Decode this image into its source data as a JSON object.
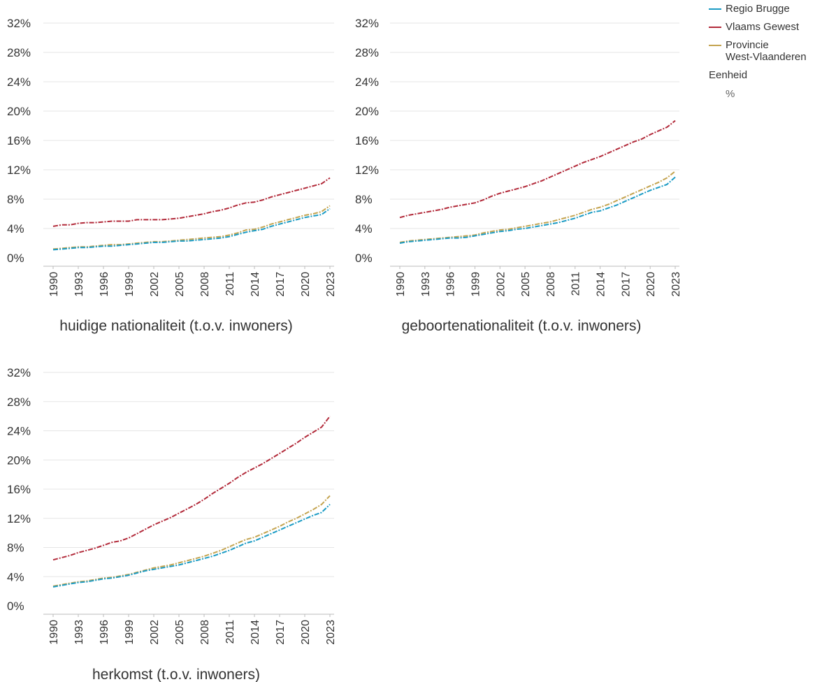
{
  "legend": {
    "items": [
      {
        "label": "Regio Brugge",
        "color": "#1a9bc4"
      },
      {
        "label": "Vlaams Gewest",
        "color": "#b22a3a"
      },
      {
        "label": "Provincie\nWest-Vlaanderen",
        "color": "#c4a450"
      }
    ],
    "unit_title": "Eenheid",
    "unit_value": "%"
  },
  "chart_data": [
    {
      "type": "line",
      "title": "huidige nationaliteit (t.o.v. inwoners)",
      "ylim": [
        0,
        32
      ],
      "yticks": [
        "0%",
        "4%",
        "8%",
        "12%",
        "16%",
        "20%",
        "24%",
        "28%",
        "32%"
      ],
      "xticks": [
        "1990",
        "1993",
        "1996",
        "1999",
        "2002",
        "2005",
        "2008",
        "2011",
        "2014",
        "2017",
        "2020",
        "2023"
      ],
      "x": [
        1990,
        1991,
        1992,
        1993,
        1994,
        1995,
        1996,
        1997,
        1998,
        1999,
        2000,
        2001,
        2002,
        2003,
        2004,
        2005,
        2006,
        2007,
        2008,
        2009,
        2010,
        2011,
        2012,
        2013,
        2014,
        2015,
        2016,
        2017,
        2018,
        2019,
        2020,
        2021,
        2022,
        2023
      ],
      "series": [
        {
          "name": "Vlaams Gewest",
          "color": "#b22a3a",
          "values": [
            4.3,
            4.5,
            4.5,
            4.7,
            4.8,
            4.8,
            4.9,
            5.0,
            5.0,
            5.0,
            5.2,
            5.2,
            5.2,
            5.2,
            5.3,
            5.4,
            5.6,
            5.8,
            6.0,
            6.3,
            6.5,
            6.8,
            7.2,
            7.5,
            7.6,
            7.9,
            8.3,
            8.6,
            8.9,
            9.2,
            9.5,
            9.8,
            10.1,
            10.9
          ]
        },
        {
          "name": "Provincie West-Vlaanderen",
          "color": "#c4a450",
          "values": [
            1.2,
            1.3,
            1.4,
            1.5,
            1.5,
            1.6,
            1.7,
            1.8,
            1.8,
            1.9,
            2.0,
            2.1,
            2.2,
            2.2,
            2.3,
            2.4,
            2.5,
            2.6,
            2.7,
            2.8,
            2.9,
            3.1,
            3.4,
            3.8,
            3.9,
            4.2,
            4.6,
            4.9,
            5.2,
            5.5,
            5.8,
            6.0,
            6.3,
            7.1
          ]
        },
        {
          "name": "Regio Brugge",
          "color": "#1a9bc4",
          "values": [
            1.1,
            1.2,
            1.3,
            1.4,
            1.4,
            1.5,
            1.6,
            1.6,
            1.7,
            1.8,
            1.9,
            2.0,
            2.1,
            2.1,
            2.2,
            2.3,
            2.3,
            2.4,
            2.5,
            2.6,
            2.7,
            2.9,
            3.2,
            3.5,
            3.7,
            3.9,
            4.3,
            4.6,
            4.9,
            5.2,
            5.5,
            5.7,
            5.9,
            6.7
          ]
        }
      ]
    },
    {
      "type": "line",
      "title": "geboortenationaliteit (t.o.v. inwoners)",
      "ylim": [
        0,
        32
      ],
      "yticks": [
        "0%",
        "4%",
        "8%",
        "12%",
        "16%",
        "20%",
        "24%",
        "28%",
        "32%"
      ],
      "xticks": [
        "1990",
        "1993",
        "1996",
        "1999",
        "2002",
        "2005",
        "2008",
        "2011",
        "2014",
        "2017",
        "2020",
        "2023"
      ],
      "x": [
        1990,
        1991,
        1992,
        1993,
        1994,
        1995,
        1996,
        1997,
        1998,
        1999,
        2000,
        2001,
        2002,
        2003,
        2004,
        2005,
        2006,
        2007,
        2008,
        2009,
        2010,
        2011,
        2012,
        2013,
        2014,
        2015,
        2016,
        2017,
        2018,
        2019,
        2020,
        2021,
        2022,
        2023
      ],
      "series": [
        {
          "name": "Vlaams Gewest",
          "color": "#b22a3a",
          "values": [
            5.5,
            5.8,
            6.0,
            6.2,
            6.4,
            6.6,
            6.9,
            7.1,
            7.3,
            7.5,
            7.9,
            8.4,
            8.8,
            9.1,
            9.4,
            9.7,
            10.1,
            10.5,
            11.0,
            11.5,
            12.0,
            12.5,
            13.0,
            13.4,
            13.8,
            14.3,
            14.8,
            15.3,
            15.8,
            16.2,
            16.8,
            17.3,
            17.8,
            18.7
          ]
        },
        {
          "name": "Provincie West-Vlaanderen",
          "color": "#c4a450",
          "values": [
            2.1,
            2.3,
            2.4,
            2.5,
            2.6,
            2.7,
            2.8,
            2.9,
            3.0,
            3.1,
            3.4,
            3.6,
            3.8,
            3.9,
            4.1,
            4.3,
            4.5,
            4.7,
            4.9,
            5.2,
            5.5,
            5.8,
            6.2,
            6.6,
            6.9,
            7.3,
            7.8,
            8.3,
            8.8,
            9.3,
            9.8,
            10.3,
            10.9,
            11.8
          ]
        },
        {
          "name": "Regio Brugge",
          "color": "#1a9bc4",
          "values": [
            2.0,
            2.2,
            2.3,
            2.4,
            2.5,
            2.6,
            2.7,
            2.7,
            2.8,
            3.0,
            3.2,
            3.4,
            3.6,
            3.7,
            3.9,
            4.0,
            4.2,
            4.4,
            4.6,
            4.8,
            5.1,
            5.4,
            5.8,
            6.2,
            6.4,
            6.8,
            7.2,
            7.7,
            8.2,
            8.7,
            9.2,
            9.6,
            10.0,
            11.0
          ]
        }
      ]
    },
    {
      "type": "line",
      "title": "herkomst (t.o.v. inwoners)",
      "ylim": [
        0,
        32
      ],
      "yticks": [
        "0%",
        "4%",
        "8%",
        "12%",
        "16%",
        "20%",
        "24%",
        "28%",
        "32%"
      ],
      "xticks": [
        "1990",
        "1993",
        "1996",
        "1999",
        "2002",
        "2005",
        "2008",
        "2011",
        "2014",
        "2017",
        "2020",
        "2023"
      ],
      "x": [
        1990,
        1991,
        1992,
        1993,
        1994,
        1995,
        1996,
        1997,
        1998,
        1999,
        2000,
        2001,
        2002,
        2003,
        2004,
        2005,
        2006,
        2007,
        2008,
        2009,
        2010,
        2011,
        2012,
        2013,
        2014,
        2015,
        2016,
        2017,
        2018,
        2019,
        2020,
        2021,
        2022,
        2023
      ],
      "series": [
        {
          "name": "Vlaams Gewest",
          "color": "#b22a3a",
          "values": [
            6.3,
            6.6,
            6.9,
            7.3,
            7.6,
            7.9,
            8.3,
            8.7,
            8.9,
            9.3,
            9.9,
            10.5,
            11.1,
            11.6,
            12.1,
            12.7,
            13.3,
            13.9,
            14.6,
            15.4,
            16.1,
            16.8,
            17.6,
            18.3,
            18.9,
            19.5,
            20.2,
            20.9,
            21.6,
            22.3,
            23.1,
            23.8,
            24.5,
            26.0
          ]
        },
        {
          "name": "Provincie West-Vlaanderen",
          "color": "#c4a450",
          "values": [
            2.7,
            2.9,
            3.1,
            3.3,
            3.4,
            3.6,
            3.8,
            3.9,
            4.1,
            4.3,
            4.6,
            4.9,
            5.2,
            5.4,
            5.6,
            5.9,
            6.2,
            6.5,
            6.8,
            7.2,
            7.6,
            8.1,
            8.6,
            9.1,
            9.4,
            9.9,
            10.4,
            10.9,
            11.5,
            12.0,
            12.6,
            13.2,
            13.9,
            15.1
          ]
        },
        {
          "name": "Regio Brugge",
          "color": "#1a9bc4",
          "values": [
            2.6,
            2.8,
            3.0,
            3.2,
            3.3,
            3.5,
            3.7,
            3.8,
            4.0,
            4.2,
            4.5,
            4.8,
            5.0,
            5.2,
            5.4,
            5.6,
            5.9,
            6.2,
            6.5,
            6.8,
            7.2,
            7.6,
            8.1,
            8.6,
            8.9,
            9.4,
            9.9,
            10.4,
            10.9,
            11.4,
            11.9,
            12.4,
            12.8,
            13.9
          ]
        }
      ]
    }
  ]
}
